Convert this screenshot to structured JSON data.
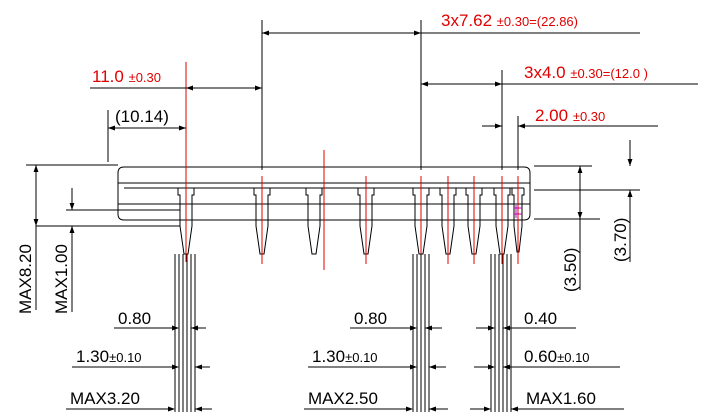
{
  "dimensions": {
    "pitch_b": {
      "main": "3x7.62 ",
      "tol": "±0.30=(22.86)"
    },
    "row_offset": {
      "main": "11.0 ",
      "tol": "±0.30"
    },
    "pitch_c": {
      "main": "3x4.0 ",
      "tol": "±0.30=(12.0 )"
    },
    "body_ref": {
      "main": "(10.14)"
    },
    "pitch_d": {
      "main": "2.00 ",
      "tol": "±0.30"
    },
    "height_a": {
      "main": "(3.50)"
    },
    "height_b": {
      "main": "(3.70)"
    },
    "max_height": {
      "main": "MAX8.20"
    },
    "max_standoff": {
      "main": "MAX1.00"
    },
    "lead_a": {
      "main": "0.80"
    },
    "lead_b": {
      "main": "0.80"
    },
    "lead_c": {
      "main": "0.40"
    },
    "shoulder_a": {
      "main": "1.30",
      "tol": "±0.10"
    },
    "shoulder_b": {
      "main": "1.30",
      "tol": "±0.10"
    },
    "shoulder_c": {
      "main": "0.60",
      "tol": "±0.10"
    },
    "maxw_a": {
      "main": "MAX3.20"
    },
    "maxw_b": {
      "main": "MAX2.50"
    },
    "maxw_c": {
      "main": "MAX1.60"
    }
  },
  "colors": {
    "outline": "#000000",
    "centerline": "#e00000",
    "accent": "#c000c0"
  }
}
